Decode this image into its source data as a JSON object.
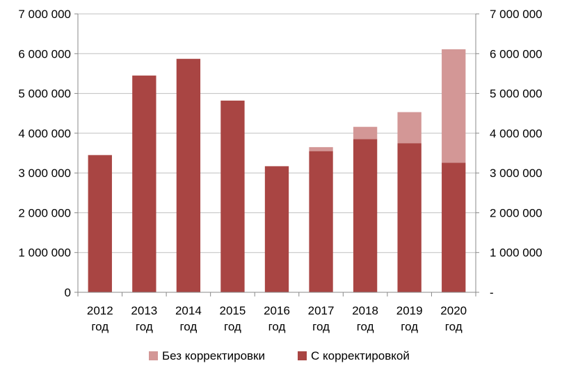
{
  "chart_data": {
    "type": "bar",
    "stacked": true,
    "categories": [
      [
        "2012",
        "год"
      ],
      [
        "2013",
        "год"
      ],
      [
        "2014",
        "год"
      ],
      [
        "2015",
        "год"
      ],
      [
        "2016",
        "год"
      ],
      [
        "2017",
        "год"
      ],
      [
        "2018",
        "год"
      ],
      [
        "2019",
        "год"
      ],
      [
        "2020",
        "год"
      ]
    ],
    "series": [
      {
        "name": "С корректировкой",
        "color": "#a94543",
        "values": [
          3450000,
          5450000,
          5870000,
          4820000,
          3170000,
          3550000,
          3850000,
          3750000,
          3260000
        ]
      },
      {
        "name": "Без корректировки",
        "color": "#d39796",
        "values": [
          0,
          0,
          0,
          0,
          0,
          100000,
          310000,
          780000,
          2850000
        ]
      }
    ],
    "ylim": [
      0,
      7000000
    ],
    "left_ticks": [
      "0",
      "1 000 000",
      "2 000 000",
      "3 000 000",
      "4 000 000",
      "5 000 000",
      "6 000 000",
      "7 000 000"
    ],
    "right_ticks": [
      "-",
      "1 000 000",
      "2 000 000",
      "3 000 000",
      "4 000 000",
      "5 000 000",
      "6 000 000",
      "7 000 000"
    ],
    "legend": [
      {
        "label": "Без корректировки",
        "color": "#d39796"
      },
      {
        "label": "С корректировкой",
        "color": "#a94543"
      }
    ],
    "legend_position": "bottom",
    "grid": true
  }
}
